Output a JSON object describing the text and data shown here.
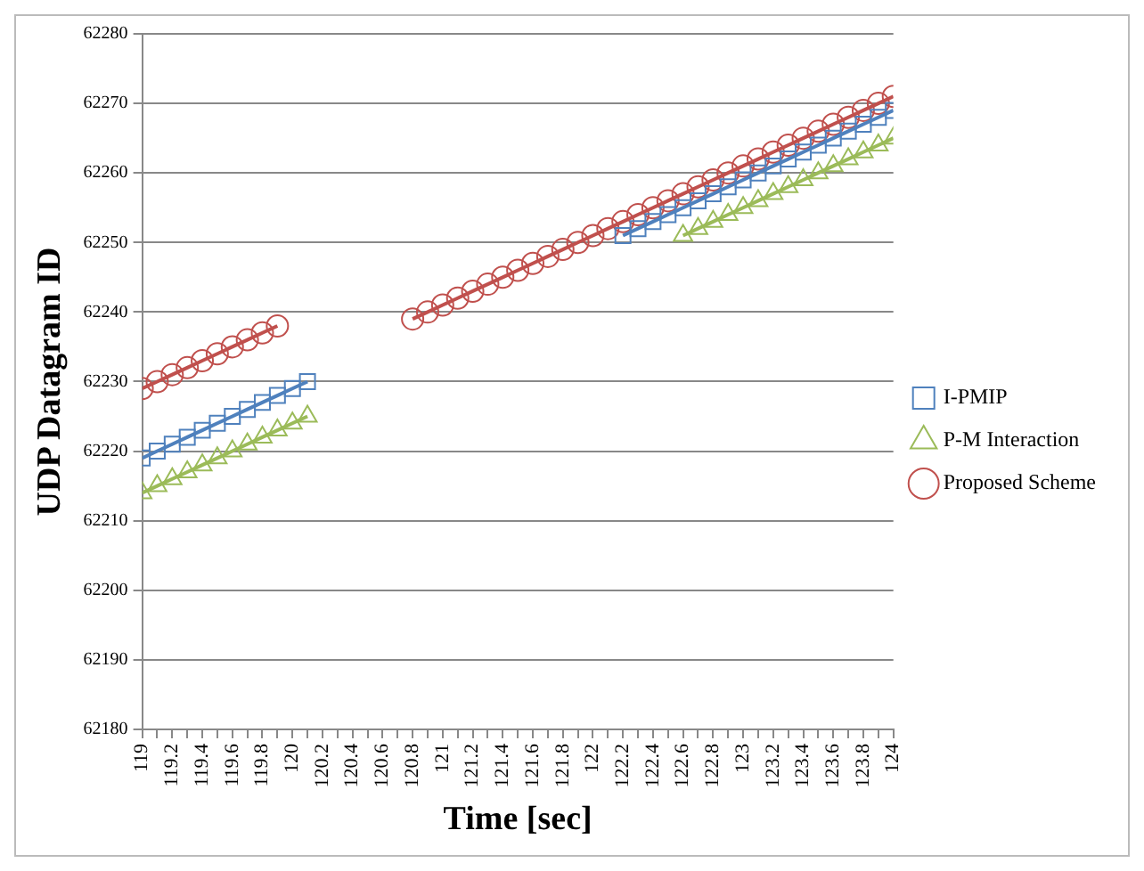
{
  "chart_data": {
    "type": "line",
    "xlabel": "Time [sec]",
    "ylabel": "UDP Datagram ID",
    "xlim": [
      119,
      124
    ],
    "xticks": [
      119,
      {
        "value": 119.1,
        "label": null
      },
      119.2,
      {
        "value": 119.3,
        "label": null
      },
      119.4,
      {
        "value": 119.5,
        "label": null
      },
      119.6,
      {
        "value": 119.7,
        "label": null
      },
      119.8,
      {
        "value": 119.9,
        "label": null
      },
      120,
      {
        "value": 120.1,
        "label": null
      },
      120.2,
      {
        "value": 120.3,
        "label": null
      },
      120.4,
      {
        "value": 120.5,
        "label": null
      },
      120.6,
      {
        "value": 120.7,
        "label": null
      },
      120.8,
      {
        "value": 120.9,
        "label": null
      },
      121,
      {
        "value": 121.1,
        "label": null
      },
      121.2,
      {
        "value": 121.3,
        "label": null
      },
      121.4,
      {
        "value": 121.5,
        "label": null
      },
      121.6,
      {
        "value": 121.7,
        "label": null
      },
      121.8,
      {
        "value": 121.9,
        "label": null
      },
      122,
      {
        "value": 122.1,
        "label": null
      },
      122.2,
      {
        "value": 122.3,
        "label": null
      },
      122.4,
      {
        "value": 122.5,
        "label": null
      },
      122.6,
      {
        "value": 122.7,
        "label": null
      },
      122.8,
      {
        "value": 122.9,
        "label": null
      },
      123,
      {
        "value": 123.1,
        "label": null
      },
      123.2,
      {
        "value": 123.3,
        "label": null
      },
      123.4,
      {
        "value": 123.5,
        "label": null
      },
      123.6,
      {
        "value": 123.7,
        "label": null
      },
      123.8,
      {
        "value": 123.9,
        "label": null
      },
      124
    ],
    "ylim": [
      62180,
      62280
    ],
    "yticks": [
      62180,
      62190,
      62200,
      62210,
      62220,
      62230,
      62240,
      62250,
      62260,
      62270,
      62280
    ],
    "grid": "y",
    "legend": "right",
    "line_style": "solid",
    "series": [
      {
        "name": "I-PMIP",
        "color": "#4f81bd",
        "marker": "square",
        "x": [
          119,
          119.1,
          119.2,
          119.3,
          119.4,
          119.5,
          119.6,
          119.7,
          119.8,
          119.9,
          120,
          120.1,
          120.2,
          122.2,
          122.3,
          122.4,
          122.5,
          122.6,
          122.7,
          122.8,
          122.9,
          123,
          123.1,
          123.2,
          123.3,
          123.4,
          123.5,
          123.6,
          123.7,
          123.8,
          123.9,
          124
        ],
        "values": [
          62219,
          62220,
          62221,
          62222,
          62223,
          62224,
          62225,
          62226,
          62227,
          62228,
          62229,
          62230,
          null,
          62251,
          62252,
          62253,
          62254,
          62255,
          62256,
          62257,
          62258,
          62259,
          62260,
          62261,
          62262,
          62263,
          62264,
          62265,
          62266,
          62267,
          62268,
          62269
        ]
      },
      {
        "name": "P-M Interaction",
        "color": "#9bbb59",
        "marker": "triangle",
        "x": [
          119,
          119.1,
          119.2,
          119.3,
          119.4,
          119.5,
          119.6,
          119.7,
          119.8,
          119.9,
          120,
          120.1,
          120.2,
          122.6,
          122.7,
          122.8,
          122.9,
          123,
          123.1,
          123.2,
          123.3,
          123.4,
          123.5,
          123.6,
          123.7,
          123.8,
          123.9,
          124
        ],
        "values": [
          62214,
          62215,
          62216,
          62217,
          62218,
          62219,
          62220,
          62221,
          62222,
          62223,
          62224,
          62225,
          null,
          62251,
          62252,
          62253,
          62254,
          62255,
          62256,
          62257,
          62258,
          62259,
          62260,
          62261,
          62262,
          62263,
          62264,
          62265
        ]
      },
      {
        "name": "Proposed Scheme",
        "color": "#c0504d",
        "marker": "circle",
        "x": [
          119,
          119.1,
          119.2,
          119.3,
          119.4,
          119.5,
          119.6,
          119.7,
          119.8,
          119.9,
          120.3,
          120.8,
          120.9,
          121,
          121.1,
          121.2,
          121.3,
          121.4,
          121.5,
          121.6,
          121.7,
          121.8,
          121.9,
          122,
          122.1,
          122.2,
          122.3,
          122.4,
          122.5,
          122.6,
          122.7,
          122.8,
          122.9,
          123,
          123.1,
          123.2,
          123.3,
          123.4,
          123.5,
          123.6,
          123.7,
          123.8,
          123.9,
          124
        ],
        "values": [
          62229,
          62230,
          62231,
          62232,
          62233,
          62234,
          62235,
          62236,
          62237,
          62238,
          null,
          62239,
          62240,
          62241,
          62242,
          62243,
          62244,
          62245,
          62246,
          62247,
          62248,
          62249,
          62250,
          62251,
          62252,
          62253,
          62254,
          62255,
          62256,
          62257,
          62258,
          62259,
          62260,
          62261,
          62262,
          62263,
          62264,
          62265,
          62266,
          62267,
          62268,
          62269,
          62270,
          62271
        ]
      }
    ]
  }
}
